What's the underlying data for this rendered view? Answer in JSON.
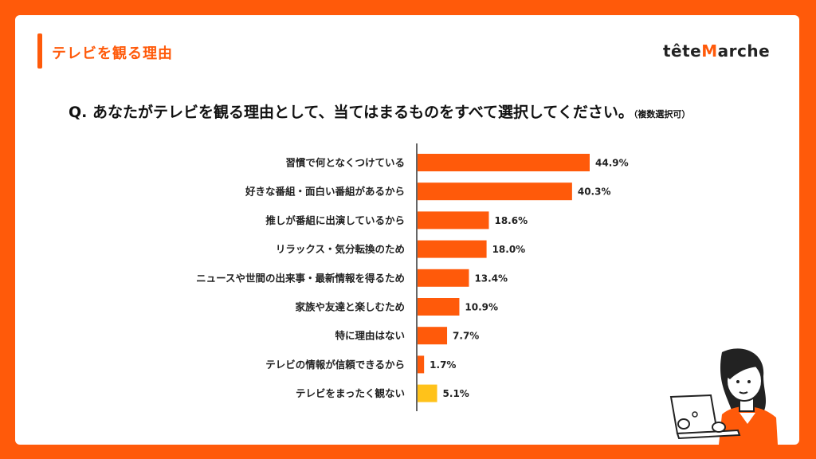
{
  "page": {
    "title": "テレビを観る理由",
    "logo": {
      "prefix": "tête",
      "crown": "M",
      "suffix": "arche"
    },
    "question": "Q. あなたがテレビを観る理由として、当てはまるものをすべて選択してください。",
    "question_note": "（複数選択可）"
  },
  "colors": {
    "accent": "#ff5a0a",
    "highlight": "#ffc21a",
    "background": "#ff5a0a"
  },
  "chart_data": {
    "type": "bar",
    "orientation": "horizontal",
    "categories": [
      "習慣で何となくつけている",
      "好きな番組・面白い番組があるから",
      "推しが番組に出演しているから",
      "リラックス・気分転換のため",
      "ニュースや世間の出来事・最新情報を得るため",
      "家族や友達と楽しむため",
      "特に理由はない",
      "テレビの情報が信頼できるから",
      "テレビをまったく観ない"
    ],
    "values": [
      44.9,
      40.3,
      18.6,
      18.0,
      13.4,
      10.9,
      7.7,
      1.7,
      5.1
    ],
    "labels": [
      "44.9%",
      "40.3%",
      "18.6%",
      "18.0%",
      "13.4%",
      "10.9%",
      "7.7%",
      "1.7%",
      "5.1%"
    ],
    "bar_colors": [
      "#ff5a0a",
      "#ff5a0a",
      "#ff5a0a",
      "#ff5a0a",
      "#ff5a0a",
      "#ff5a0a",
      "#ff5a0a",
      "#ff5a0a",
      "#ffc21a"
    ],
    "xlim": [
      0,
      100
    ],
    "grid": false,
    "legend": "none"
  }
}
